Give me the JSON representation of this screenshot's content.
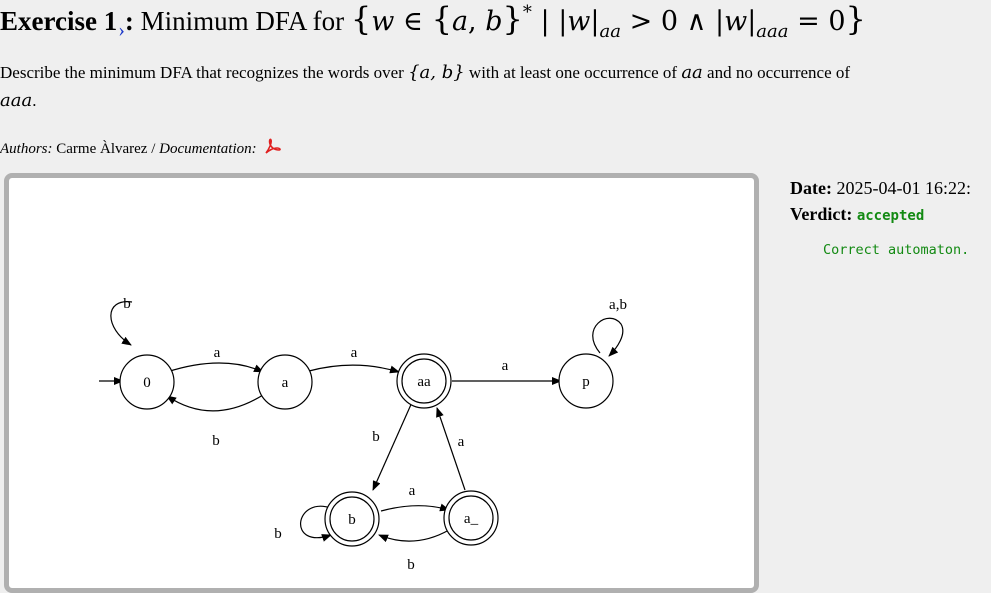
{
  "header": {
    "exercise_label": "Exercise 1",
    "chevron": "›",
    "after_label": ":",
    "prefix": "Minimum DFA for",
    "set": {
      "open_brace": "{",
      "w": "w",
      "in": "∈",
      "alphabet_open": "{",
      "a": "a",
      "comma": ",",
      "b": "b",
      "alphabet_close": "}",
      "star": "*",
      "bar": "|",
      "abs1_open": "|",
      "abs1_w": "w",
      "abs1_close": "|",
      "sub1": "aa",
      "gt": ">",
      "zero1": "0",
      "and": "∧",
      "abs2_open": "|",
      "abs2_w": "w",
      "abs2_close": "|",
      "sub2": "aaa",
      "eq": "=",
      "zero2": "0",
      "close_brace": "}"
    }
  },
  "description": {
    "part1": "Describe the minimum DFA that recognizes the words over ",
    "alphabet": "{a, b}",
    "part2": " with at least one occurrence of ",
    "m1": "aa",
    "part3": " and no occurrence of",
    "m2": "aaa",
    "part4": "."
  },
  "authors": {
    "authors_label": "Authors:",
    "author_name": "Carme Àlvarez",
    "separator": " / ",
    "doc_label": "Documentation:",
    "doc_icon": "pdf-icon"
  },
  "submission": {
    "date_label": "Date:",
    "date_value": "2025-04-01 16:22:",
    "verdict_label": "Verdict:",
    "verdict_value": "accepted",
    "message": "Correct automaton.",
    "accent_color": "#138a13"
  },
  "automaton": {
    "states": [
      {
        "id": "0",
        "label": "0",
        "initial": true,
        "accepting": false
      },
      {
        "id": "a",
        "label": "a",
        "initial": false,
        "accepting": false
      },
      {
        "id": "aa",
        "label": "aa",
        "initial": false,
        "accepting": true
      },
      {
        "id": "p",
        "label": "p",
        "initial": false,
        "accepting": false
      },
      {
        "id": "b",
        "label": "b",
        "initial": false,
        "accepting": true
      },
      {
        "id": "a_",
        "label": "a_",
        "initial": false,
        "accepting": true
      }
    ],
    "transitions": [
      {
        "from": "0",
        "to": "0",
        "label": "b"
      },
      {
        "from": "0",
        "to": "a",
        "label": "a"
      },
      {
        "from": "a",
        "to": "0",
        "label": "b"
      },
      {
        "from": "a",
        "to": "aa",
        "label": "a"
      },
      {
        "from": "aa",
        "to": "p",
        "label": "a"
      },
      {
        "from": "p",
        "to": "p",
        "label": "a,b"
      },
      {
        "from": "aa",
        "to": "b",
        "label": "b"
      },
      {
        "from": "a_",
        "to": "aa",
        "label": "a"
      },
      {
        "from": "b",
        "to": "a_",
        "label": "a"
      },
      {
        "from": "a_",
        "to": "b",
        "label": "b"
      },
      {
        "from": "b",
        "to": "b",
        "label": "b"
      }
    ]
  }
}
